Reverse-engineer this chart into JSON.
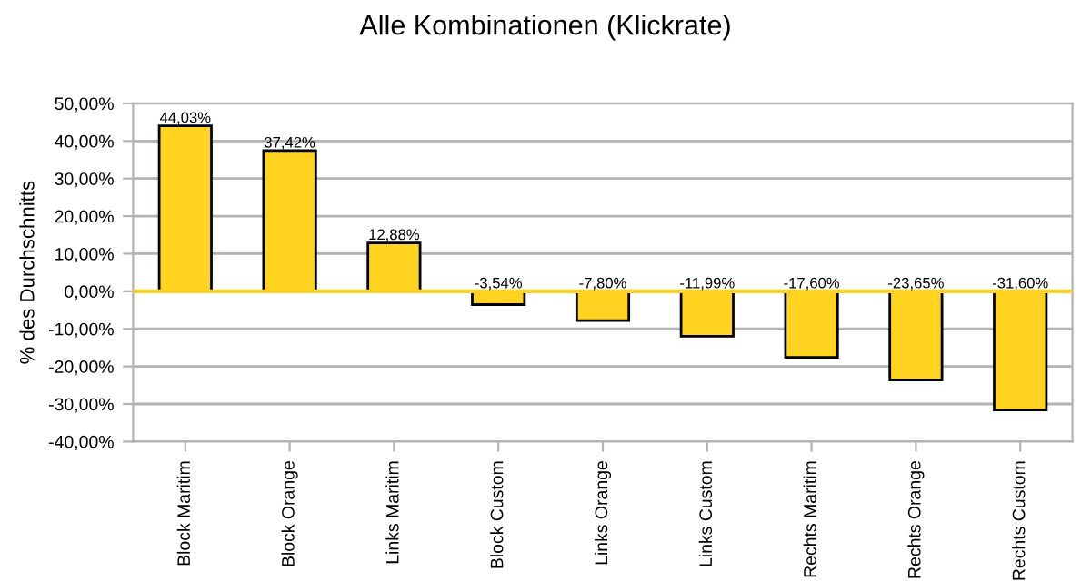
{
  "chart_data": {
    "type": "bar",
    "title": "Alle Kombinationen (Klickrate)",
    "ylabel": "% des Durchschnitts",
    "categories": [
      "Block Maritim",
      "Block Orange",
      "Links Maritim",
      "Block Custom",
      "Links Orange",
      "Links Custom",
      "Rechts Maritim",
      "Rechts Orange",
      "Rechts Custom"
    ],
    "values": [
      44.03,
      37.42,
      12.88,
      -3.54,
      -7.8,
      -11.99,
      -17.6,
      -23.65,
      -31.6
    ],
    "value_labels": [
      "44,03%",
      "37,42%",
      "12,88%",
      "-3,54%",
      "-7,80%",
      "-11,99%",
      "-17,60%",
      "-23,65%",
      "-31,60%"
    ],
    "color": "#ffd320",
    "ylim": [
      -40,
      50
    ],
    "yticks": [
      {
        "value": -40,
        "label": "-40,00%"
      },
      {
        "value": -30,
        "label": "-30,00%"
      },
      {
        "value": -20,
        "label": "-20,00%"
      },
      {
        "value": -10,
        "label": "-10,00%"
      },
      {
        "value": 0,
        "label": "0,00%"
      },
      {
        "value": 10,
        "label": "10,00%"
      },
      {
        "value": 20,
        "label": "20,00%"
      },
      {
        "value": 30,
        "label": "30,00%"
      },
      {
        "value": 40,
        "label": "40,00%"
      },
      {
        "value": 50,
        "label": "50,00%"
      }
    ],
    "grid": "y",
    "ref_lines": [
      {
        "axis": "y",
        "value": 0,
        "label": null,
        "color": "#ffd320"
      }
    ]
  }
}
